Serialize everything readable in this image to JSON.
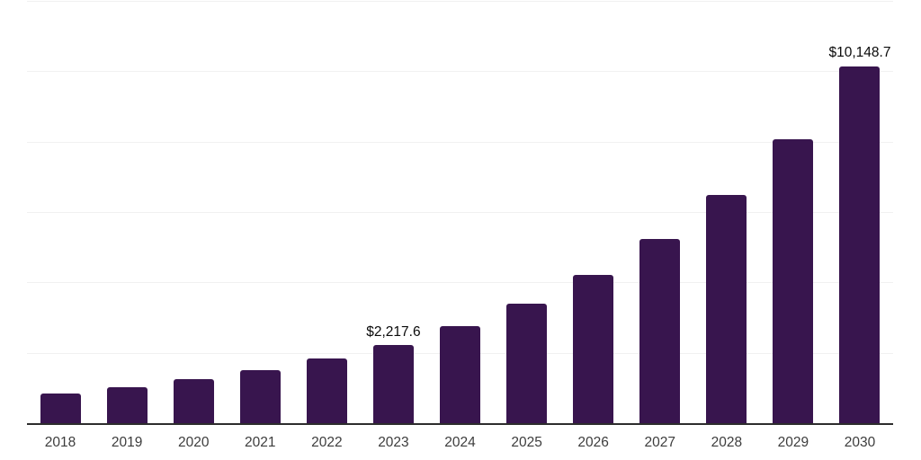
{
  "chart_data": {
    "type": "bar",
    "title": "",
    "xlabel": "",
    "ylabel": "",
    "categories": [
      "2018",
      "2019",
      "2020",
      "2021",
      "2022",
      "2023",
      "2024",
      "2025",
      "2026",
      "2027",
      "2028",
      "2029",
      "2030"
    ],
    "values": [
      840,
      1020,
      1240,
      1510,
      1830,
      2217.6,
      2760,
      3400,
      4220,
      5230,
      6490,
      8060,
      10148.7
    ],
    "data_labels": [
      "",
      "",
      "",
      "",
      "",
      "$2,217.6",
      "",
      "",
      "",
      "",
      "",
      "",
      "$10,148.7"
    ],
    "ylim": [
      0,
      12000
    ],
    "gridline_step": 2000,
    "grid": "horizontal",
    "legend": "none",
    "colors": {
      "bar": "#38154E",
      "gridline": "#f1f1f1",
      "axis_line": "#2d2d2d",
      "tick_label": "#3d3d3d",
      "data_label": "#0a0a0a",
      "background": "#ffffff"
    }
  }
}
